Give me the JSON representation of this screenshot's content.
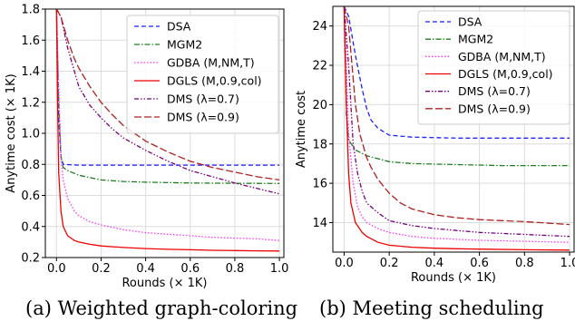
{
  "chart_data": [
    {
      "type": "line",
      "caption": "(a) Weighted graph-coloring",
      "xlabel": "Rounds (× 1K)",
      "ylabel": "Anytime cost (× 1K)",
      "xlim": [
        -0.05,
        1.02
      ],
      "ylim": [
        0.2,
        1.8
      ],
      "xticks": [
        "0.0",
        "0.2",
        "0.4",
        "0.6",
        "0.8",
        "1.0"
      ],
      "yticks": [
        "0.2",
        "0.4",
        "0.6",
        "0.8",
        "1.0",
        "1.2",
        "1.4",
        "1.6",
        "1.8"
      ],
      "grid": true,
      "legend_position": "top-right",
      "series": [
        {
          "name": "DSA",
          "color": "#1f1fff",
          "dash": "dashed",
          "x": [
            0.0,
            0.01,
            0.02,
            0.03,
            0.1,
            0.3,
            0.5,
            0.7,
            1.0
          ],
          "y": [
            1.8,
            1.1,
            0.85,
            0.8,
            0.795,
            0.795,
            0.795,
            0.795,
            0.795
          ]
        },
        {
          "name": "MGM2",
          "color": "#1f7f1f",
          "dash": "dashdot",
          "x": [
            0.0,
            0.01,
            0.02,
            0.03,
            0.05,
            0.1,
            0.2,
            0.3,
            0.4,
            0.6,
            0.8,
            1.0
          ],
          "y": [
            1.8,
            1.2,
            0.85,
            0.78,
            0.76,
            0.73,
            0.7,
            0.69,
            0.685,
            0.68,
            0.678,
            0.677
          ]
        },
        {
          "name": "GDBA (M,NM,T)",
          "color": "#ff33ff",
          "dash": "dotted",
          "x": [
            0.0,
            0.01,
            0.02,
            0.03,
            0.05,
            0.08,
            0.1,
            0.15,
            0.2,
            0.3,
            0.4,
            0.5,
            0.6,
            0.7,
            0.8,
            0.9,
            1.0
          ],
          "y": [
            1.8,
            1.3,
            0.85,
            0.7,
            0.58,
            0.5,
            0.47,
            0.43,
            0.41,
            0.38,
            0.36,
            0.35,
            0.34,
            0.33,
            0.325,
            0.32,
            0.31
          ]
        },
        {
          "name": "DGLS (M,0.9,col)",
          "color": "#ee0000",
          "dash": "solid",
          "x": [
            0.0,
            0.005,
            0.01,
            0.02,
            0.03,
            0.05,
            0.08,
            0.1,
            0.15,
            0.2,
            0.3,
            0.4,
            0.5,
            0.6,
            0.7,
            0.8,
            0.9,
            1.0
          ],
          "y": [
            1.8,
            1.2,
            0.75,
            0.5,
            0.4,
            0.34,
            0.31,
            0.3,
            0.285,
            0.275,
            0.265,
            0.258,
            0.253,
            0.25,
            0.247,
            0.245,
            0.243,
            0.242
          ]
        },
        {
          "name": "DMS (λ=0.7)",
          "color": "#7a0080",
          "dash": "dashdotdot",
          "x": [
            0.0,
            0.02,
            0.05,
            0.08,
            0.1,
            0.15,
            0.2,
            0.25,
            0.3,
            0.4,
            0.5,
            0.6,
            0.7,
            0.8,
            0.9,
            1.0
          ],
          "y": [
            1.8,
            1.75,
            1.55,
            1.4,
            1.3,
            1.18,
            1.1,
            1.03,
            0.97,
            0.89,
            0.82,
            0.76,
            0.72,
            0.68,
            0.645,
            0.61
          ]
        },
        {
          "name": "DMS (λ=0.9)",
          "color": "#b02020",
          "dash": "longdash",
          "x": [
            0.0,
            0.02,
            0.05,
            0.08,
            0.1,
            0.15,
            0.2,
            0.25,
            0.3,
            0.4,
            0.5,
            0.6,
            0.7,
            0.8,
            0.9,
            1.0
          ],
          "y": [
            1.8,
            1.75,
            1.6,
            1.48,
            1.42,
            1.3,
            1.2,
            1.12,
            1.05,
            0.95,
            0.88,
            0.82,
            0.78,
            0.75,
            0.72,
            0.7
          ]
        }
      ]
    },
    {
      "type": "line",
      "caption": "(b) Meeting scheduling",
      "xlabel": "Rounds (× 1K)",
      "ylabel": "Anytime cost",
      "xlim": [
        -0.05,
        1.02
      ],
      "ylim": [
        12.5,
        25
      ],
      "xticks": [
        "0.0",
        "0.2",
        "0.4",
        "0.6",
        "0.8",
        "1.0"
      ],
      "yticks": [
        "14",
        "16",
        "18",
        "20",
        "22",
        "24"
      ],
      "grid": true,
      "legend_position": "top-right",
      "series": [
        {
          "name": "DSA",
          "color": "#1f1fff",
          "dash": "dashed",
          "x": [
            0.0,
            0.02,
            0.05,
            0.08,
            0.1,
            0.12,
            0.15,
            0.2,
            0.3,
            0.5,
            0.7,
            1.0
          ],
          "y": [
            25,
            24.5,
            22.5,
            20.8,
            19.8,
            19.2,
            18.8,
            18.45,
            18.35,
            18.3,
            18.3,
            18.3
          ]
        },
        {
          "name": "MGM2",
          "color": "#1f7f1f",
          "dash": "dashdot",
          "x": [
            0.0,
            0.01,
            0.02,
            0.05,
            0.1,
            0.2,
            0.3,
            0.5,
            0.7,
            1.0
          ],
          "y": [
            25,
            19.5,
            18.2,
            17.7,
            17.4,
            17.1,
            17.0,
            16.95,
            16.9,
            16.9
          ]
        },
        {
          "name": "GDBA (M,NM,T)",
          "color": "#ff33ff",
          "dash": "dotted",
          "x": [
            0.0,
            0.01,
            0.02,
            0.04,
            0.06,
            0.08,
            0.1,
            0.15,
            0.2,
            0.3,
            0.4,
            0.5,
            0.6,
            0.8,
            1.0
          ],
          "y": [
            25,
            22.0,
            18.5,
            16.0,
            14.8,
            14.3,
            14.0,
            13.7,
            13.5,
            13.3,
            13.2,
            13.15,
            13.1,
            13.05,
            13.0
          ]
        },
        {
          "name": "DGLS (M,0.9,col)",
          "color": "#ee0000",
          "dash": "solid",
          "x": [
            0.0,
            0.01,
            0.02,
            0.03,
            0.05,
            0.08,
            0.1,
            0.15,
            0.2,
            0.3,
            0.4,
            0.5,
            0.6,
            0.8,
            1.0
          ],
          "y": [
            25,
            20.0,
            16.5,
            15.0,
            14.0,
            13.5,
            13.3,
            13.0,
            12.85,
            12.75,
            12.7,
            12.67,
            12.65,
            12.62,
            12.6
          ]
        },
        {
          "name": "DMS (λ=0.7)",
          "color": "#7a0080",
          "dash": "dashdotdot",
          "x": [
            0.0,
            0.02,
            0.04,
            0.06,
            0.08,
            0.1,
            0.15,
            0.2,
            0.3,
            0.4,
            0.5,
            0.6,
            0.7,
            0.8,
            1.0
          ],
          "y": [
            25,
            22.0,
            18.0,
            16.5,
            15.6,
            15.0,
            14.5,
            14.1,
            13.85,
            13.7,
            13.6,
            13.5,
            13.45,
            13.4,
            13.3
          ]
        },
        {
          "name": "DMS (λ=0.9)",
          "color": "#b02020",
          "dash": "longdash",
          "x": [
            0.0,
            0.02,
            0.05,
            0.07,
            0.1,
            0.12,
            0.15,
            0.2,
            0.25,
            0.3,
            0.4,
            0.5,
            0.6,
            0.7,
            0.8,
            1.0
          ],
          "y": [
            25,
            24.0,
            20.0,
            18.5,
            17.3,
            16.8,
            16.2,
            15.5,
            15.0,
            14.7,
            14.4,
            14.25,
            14.15,
            14.1,
            14.05,
            13.9
          ]
        }
      ]
    }
  ]
}
